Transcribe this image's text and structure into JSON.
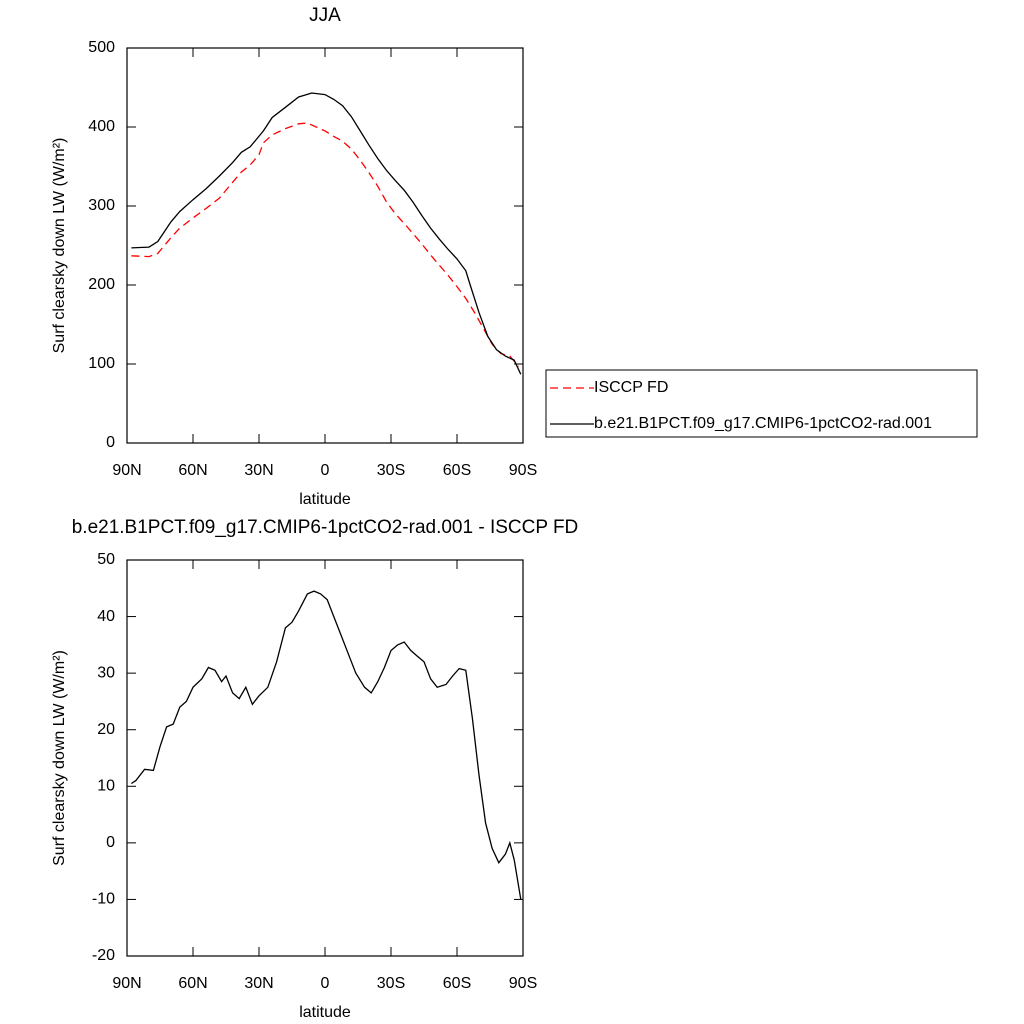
{
  "chart_data": [
    {
      "type": "line",
      "title": "JJA",
      "xlabel": "latitude",
      "ylabel": "Surf clearsky down LW (W/m²)",
      "xlim": [
        90,
        -90
      ],
      "ylim": [
        0,
        500
      ],
      "xticks": [
        {
          "value": 90,
          "label": "90N"
        },
        {
          "value": 60,
          "label": "60N"
        },
        {
          "value": 30,
          "label": "30N"
        },
        0,
        {
          "value": -30,
          "label": "30S"
        },
        {
          "value": -60,
          "label": "60S"
        },
        {
          "value": -90,
          "label": "90S"
        }
      ],
      "yticks": [
        0,
        100,
        200,
        300,
        400,
        500
      ],
      "legend": "right",
      "series": [
        {
          "name": "ISCCP FD",
          "color": "#ff0000",
          "dash": true,
          "x": [
            88,
            80,
            76,
            70,
            66,
            60,
            54,
            48,
            42,
            38,
            34,
            30,
            28,
            24,
            18,
            12,
            8,
            4,
            0,
            -4,
            -8,
            -12,
            -16,
            -20,
            -24,
            -28,
            -32,
            -36,
            -40,
            -44,
            -48,
            -52,
            -56,
            -60,
            -64,
            -68,
            -72,
            -76,
            -80,
            -84,
            -88
          ],
          "values": [
            237,
            236,
            240,
            260,
            272,
            285,
            297,
            310,
            330,
            343,
            352,
            365,
            380,
            390,
            398,
            404,
            405,
            400,
            395,
            388,
            382,
            372,
            358,
            342,
            325,
            305,
            290,
            278,
            265,
            252,
            238,
            225,
            212,
            198,
            183,
            165,
            145,
            125,
            113,
            110,
            97
          ]
        },
        {
          "name": "b.e21.B1PCT.f09_g17.CMIP6-1pctCO2-rad.001",
          "color": "#000000",
          "dash": false,
          "x": [
            88,
            80,
            76,
            70,
            66,
            60,
            54,
            48,
            42,
            38,
            34,
            28,
            24,
            18,
            12,
            6,
            0,
            -4,
            -8,
            -12,
            -16,
            -20,
            -24,
            -28,
            -32,
            -36,
            -40,
            -44,
            -48,
            -52,
            -56,
            -60,
            -64,
            -66,
            -70,
            -74,
            -78,
            -82,
            -86,
            -89
          ],
          "values": [
            247,
            248,
            255,
            280,
            293,
            308,
            322,
            338,
            355,
            368,
            375,
            395,
            412,
            425,
            438,
            443,
            441,
            435,
            427,
            413,
            395,
            377,
            360,
            345,
            332,
            320,
            305,
            288,
            272,
            258,
            245,
            233,
            218,
            200,
            165,
            135,
            118,
            110,
            105,
            87
          ]
        }
      ]
    },
    {
      "type": "line",
      "title": "b.e21.B1PCT.f09_g17.CMIP6-1pctCO2-rad.001 - ISCCP FD",
      "xlabel": "latitude",
      "ylabel": "Surf clearsky down LW (W/m²)",
      "xlim": [
        90,
        -90
      ],
      "ylim": [
        -20,
        50
      ],
      "xticks": [
        {
          "value": 90,
          "label": "90N"
        },
        {
          "value": 60,
          "label": "60N"
        },
        {
          "value": 30,
          "label": "30N"
        },
        0,
        {
          "value": -30,
          "label": "30S"
        },
        {
          "value": -60,
          "label": "60S"
        },
        {
          "value": -90,
          "label": "90S"
        }
      ],
      "yticks": [
        -20,
        -10,
        0,
        10,
        20,
        30,
        40,
        50
      ],
      "series": [
        {
          "color": "#000000",
          "dash": false,
          "x": [
            88,
            86,
            82,
            78,
            75,
            72,
            69,
            66,
            63,
            60,
            56,
            53,
            50,
            47,
            45,
            42,
            39,
            36,
            33,
            30,
            26,
            22,
            18,
            15,
            12,
            8,
            5,
            2,
            -1,
            -4,
            -7,
            -11,
            -14,
            -18,
            -21,
            -24,
            -27,
            -30,
            -33,
            -36,
            -39,
            -42,
            -45,
            -48,
            -51,
            -55,
            -58,
            -61,
            -64,
            -67,
            -70,
            -73,
            -76,
            -79,
            -82,
            -84,
            -86,
            -89
          ],
          "values": [
            10.5,
            11,
            13,
            12.8,
            17,
            20.5,
            21,
            24,
            25,
            27.5,
            29,
            31,
            30.5,
            28.5,
            29.5,
            26.5,
            25.5,
            27.5,
            24.5,
            26,
            27.5,
            32,
            38,
            39,
            41,
            44,
            44.5,
            44,
            43,
            40,
            37,
            33,
            30,
            27.5,
            26.5,
            28.5,
            31,
            34,
            35,
            35.5,
            34,
            33,
            32,
            29,
            27.5,
            28,
            29.5,
            30.8,
            30.5,
            22,
            12,
            3.5,
            -1,
            -3.5,
            -2,
            0,
            -3,
            -10
          ]
        }
      ]
    }
  ]
}
